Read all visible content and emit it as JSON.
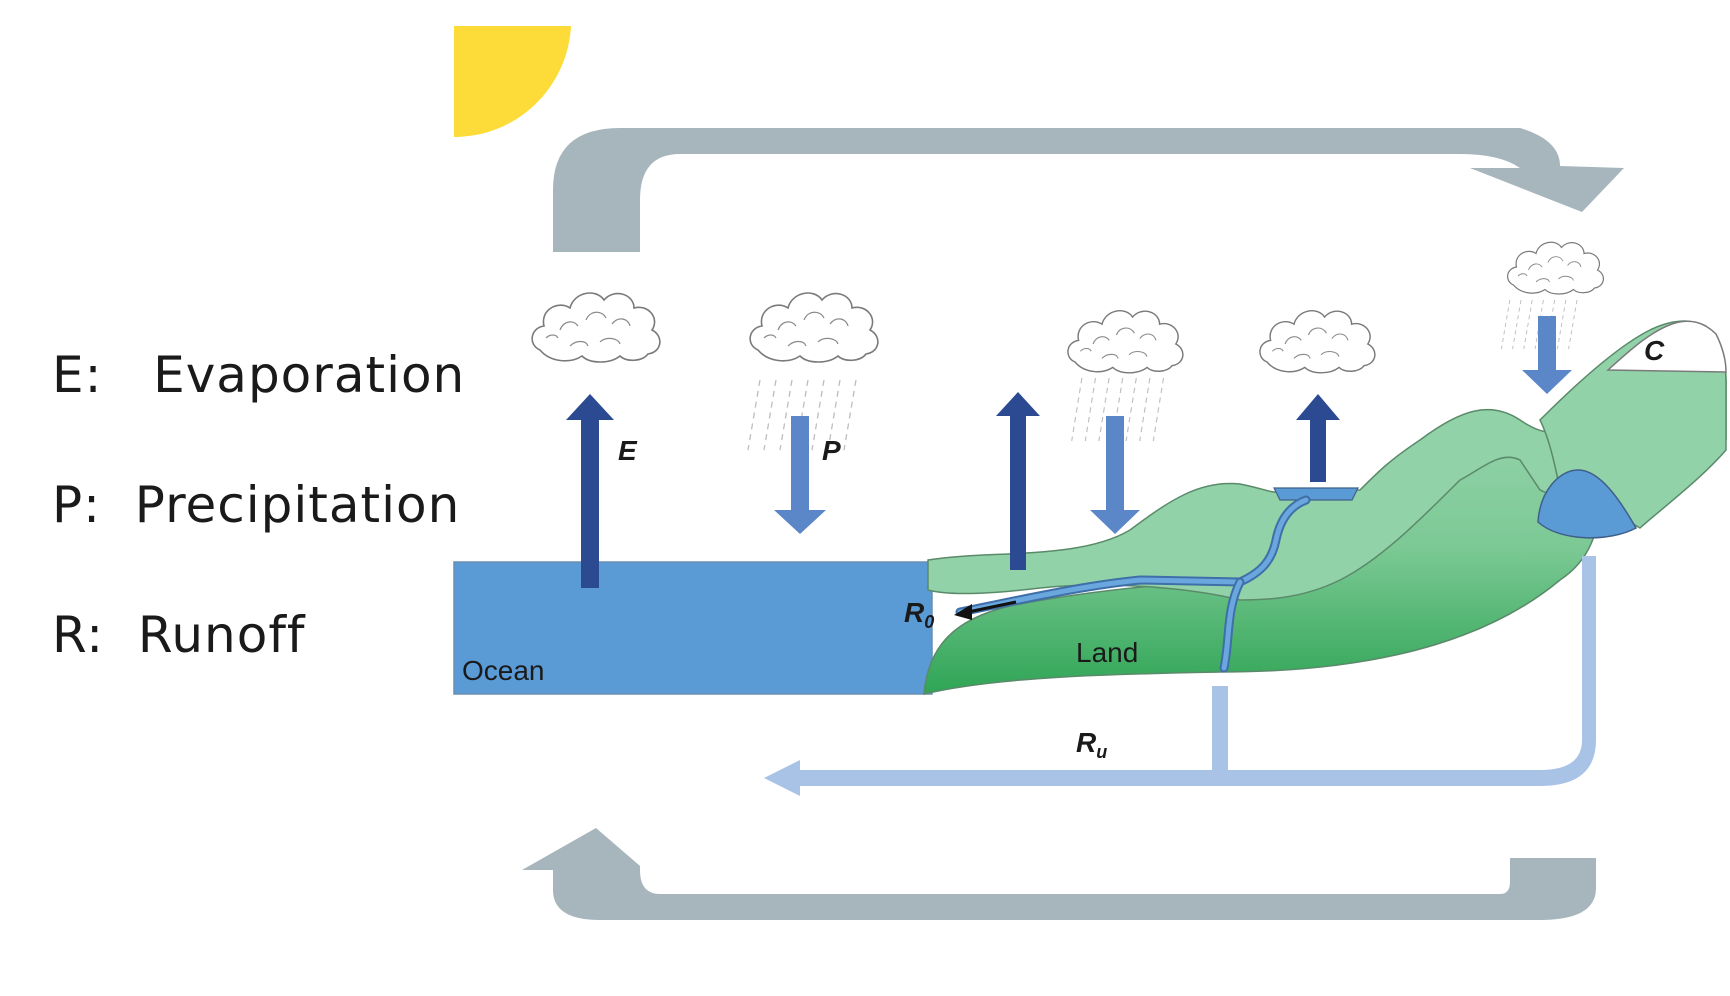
{
  "legend": [
    {
      "key": "E:",
      "text": "Evaporation"
    },
    {
      "key": "P:",
      "text": "Precipitation"
    },
    {
      "key": "R:",
      "text": "Runoff"
    }
  ],
  "diagram": {
    "labels": {
      "evaporation": "E",
      "precipitation": "P",
      "surface_runoff": "R",
      "surface_runoff_sub": "0",
      "underground_runoff": "R",
      "underground_runoff_sub": "u",
      "cryosphere": "C",
      "ocean": "Ocean",
      "land": "Land"
    },
    "colors": {
      "sun": "#FDDC3A",
      "ocean": "#5B9BD5",
      "land_light": "#92D2A8",
      "land_dark": "#2FA555",
      "evaporation_arrow": "#2C4A92",
      "precipitation_arrow": "#5B87C9",
      "runoff_arrow": "#A9C3E6",
      "circulation_arrow": "#A7B5BC"
    }
  }
}
